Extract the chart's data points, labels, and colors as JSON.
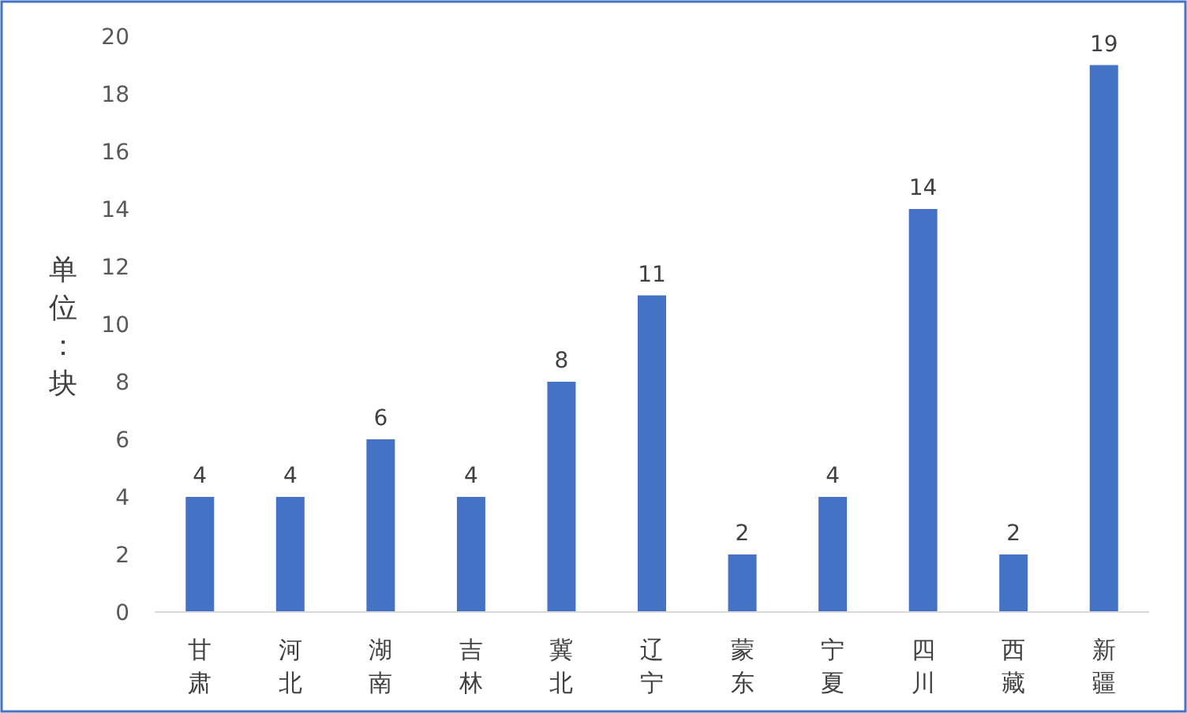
{
  "chart_data": {
    "type": "bar",
    "ylabel": "单位：块",
    "categories": [
      "甘肃",
      "河北",
      "湖南",
      "吉林",
      "冀北",
      "辽宁",
      "蒙东",
      "宁夏",
      "四川",
      "西藏",
      "新疆"
    ],
    "values": [
      4,
      4,
      6,
      4,
      8,
      11,
      2,
      4,
      14,
      2,
      19
    ],
    "color": "#4472c4",
    "ylim": [
      0,
      20
    ],
    "yticks": [
      0,
      2,
      4,
      6,
      8,
      10,
      12,
      14,
      16,
      18,
      20
    ],
    "data_labels": true
  }
}
